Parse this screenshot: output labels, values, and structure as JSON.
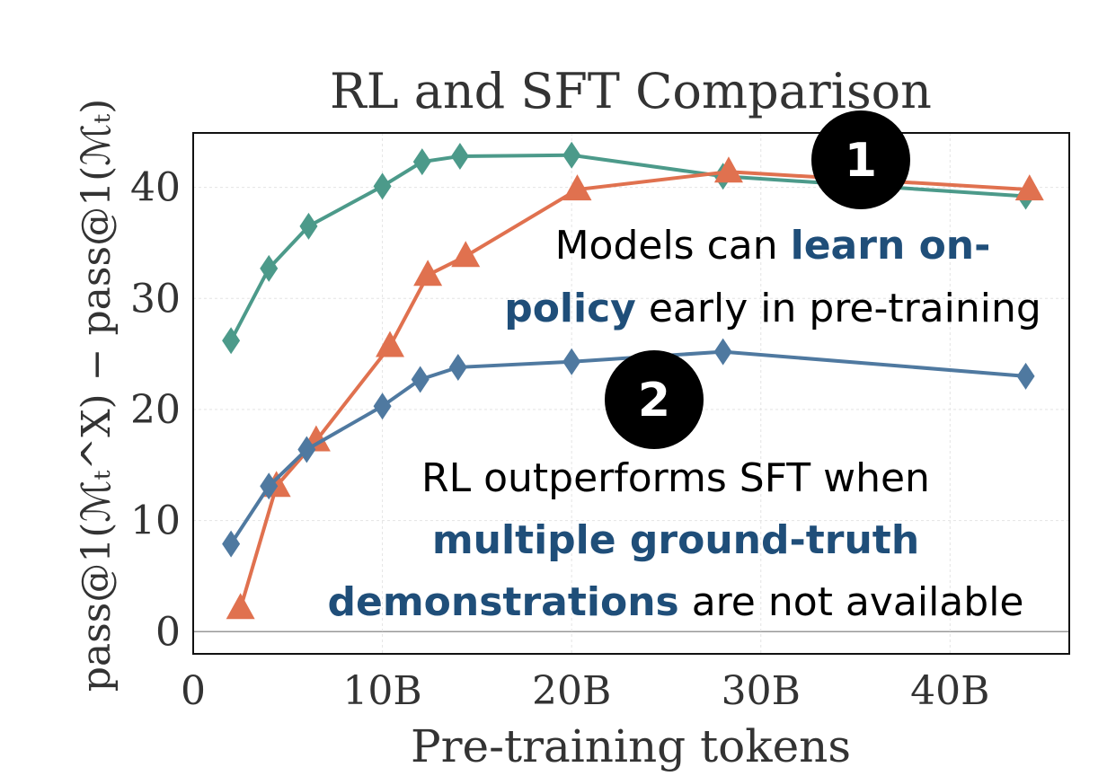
{
  "chart_data": {
    "type": "line",
    "title": "RL and SFT Comparison",
    "x_label": "Pre-training tokens",
    "y_label": "pass@1(ℳₜ^X) − pass@1(ℳₜ)",
    "xlim": [
      0,
      46.3
    ],
    "ylim": [
      -2,
      44.9
    ],
    "xticks": [
      0,
      {
        "value": 10,
        "label": "10B"
      },
      {
        "value": 20,
        "label": "20B"
      },
      {
        "value": 30,
        "label": "30B"
      },
      {
        "value": 40,
        "label": "40B"
      }
    ],
    "yticks": [
      0,
      10,
      20,
      30,
      40
    ],
    "grid": true,
    "series": [
      {
        "color": "#4c9a8a",
        "marker": "diamond",
        "x": [
          2,
          4,
          6.1,
          10,
          12.1,
          14.1,
          20,
          28,
          44
        ],
        "values": [
          26.2,
          32.7,
          36.5,
          40.1,
          42.3,
          42.8,
          42.9,
          41.0,
          39.2
        ]
      },
      {
        "color": "#e0714f",
        "marker": "triangle",
        "x": [
          2.5,
          4.4,
          6.5,
          10.4,
          12.4,
          14.4,
          20.3,
          28.3,
          44.2
        ],
        "values": [
          2.1,
          13.1,
          17.2,
          25.7,
          32.1,
          33.8,
          39.8,
          41.4,
          39.8
        ]
      },
      {
        "color": "#4f79a0",
        "marker": "diamond",
        "x": [
          2,
          4,
          6,
          10,
          12,
          14,
          20,
          28,
          44
        ],
        "values": [
          7.9,
          13.1,
          16.4,
          20.3,
          22.7,
          23.8,
          24.3,
          25.2,
          23.0
        ]
      }
    ],
    "highlight_color": "#1f4e79",
    "badges": [
      "1",
      "2"
    ],
    "notes": [
      [
        [
          {
            "text": "Models can "
          },
          {
            "text": "learn on-",
            "highlight": true
          }
        ],
        [
          {
            "text": "policy",
            "highlight": true
          },
          {
            "text": " early in pre-training"
          }
        ]
      ],
      [
        [
          {
            "text": "RL outperforms SFT when"
          }
        ],
        [
          {
            "text": "multiple ground-truth",
            "highlight": true
          }
        ],
        [
          {
            "text": "demonstrations",
            "highlight": true
          },
          {
            "text": " are not available"
          }
        ]
      ]
    ]
  }
}
